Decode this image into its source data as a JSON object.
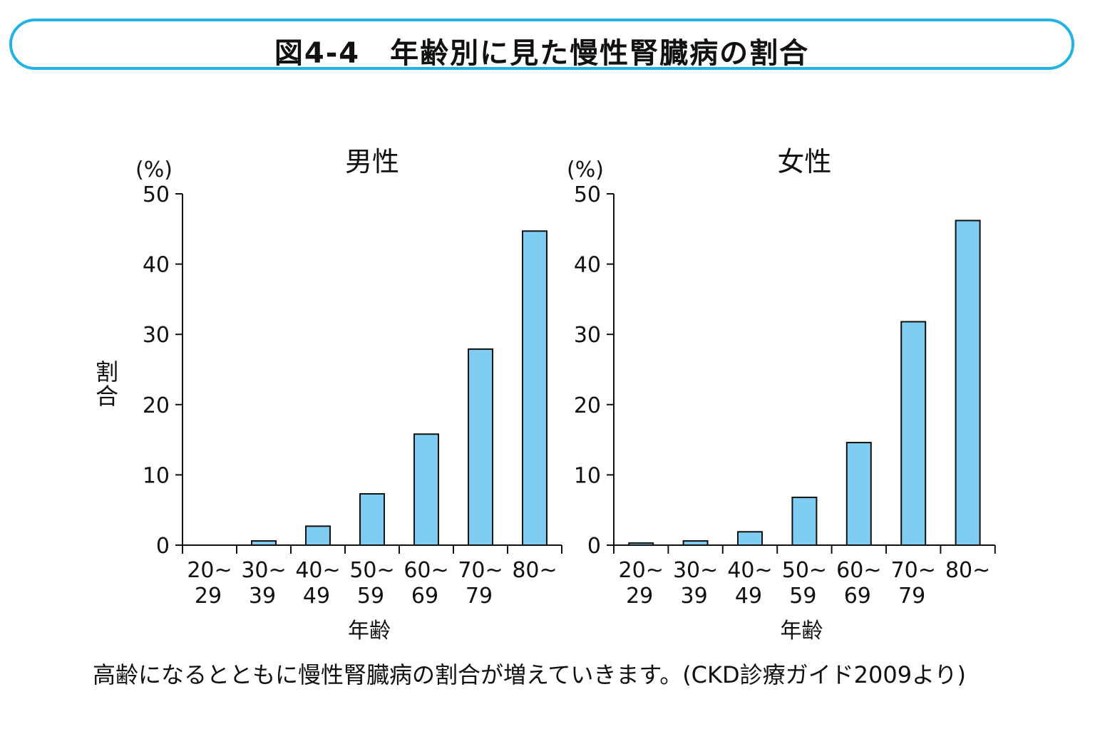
{
  "figure_title": "図4-4　年齢別に見た慢性腎臓病の割合",
  "caption": "高齢になるとともに慢性腎臓病の割合が増えていきます。(CKD診療ガイド2009より)",
  "colors": {
    "bar_fill": "#7fcdf2",
    "frame": "#22b3e6",
    "axis": "#111111"
  },
  "chart_data": [
    {
      "type": "bar",
      "title": "男性",
      "ylabel": "割合",
      "yunit": "(%)",
      "xlabel": "年齢",
      "ylim": [
        0,
        50
      ],
      "yticks": [
        0,
        10,
        20,
        30,
        40,
        50
      ],
      "categories": [
        [
          "20~",
          "29"
        ],
        [
          "30~",
          "39"
        ],
        [
          "40~",
          "49"
        ],
        [
          "50~",
          "59"
        ],
        [
          "60~",
          "69"
        ],
        [
          "70~",
          "79"
        ],
        [
          "80~",
          ""
        ]
      ],
      "values": [
        0,
        0.6,
        2.7,
        7.3,
        15.8,
        27.9,
        44.7
      ],
      "grid": false
    },
    {
      "type": "bar",
      "title": "女性",
      "ylabel": "",
      "yunit": "(%)",
      "xlabel": "年齢",
      "ylim": [
        0,
        50
      ],
      "yticks": [
        0,
        10,
        20,
        30,
        40,
        50
      ],
      "categories": [
        [
          "20~",
          "29"
        ],
        [
          "30~",
          "39"
        ],
        [
          "40~",
          "49"
        ],
        [
          "50~",
          "59"
        ],
        [
          "60~",
          "69"
        ],
        [
          "70~",
          "79"
        ],
        [
          "80~",
          ""
        ]
      ],
      "values": [
        0.3,
        0.6,
        1.9,
        6.8,
        14.6,
        31.8,
        46.2
      ],
      "grid": false
    }
  ]
}
